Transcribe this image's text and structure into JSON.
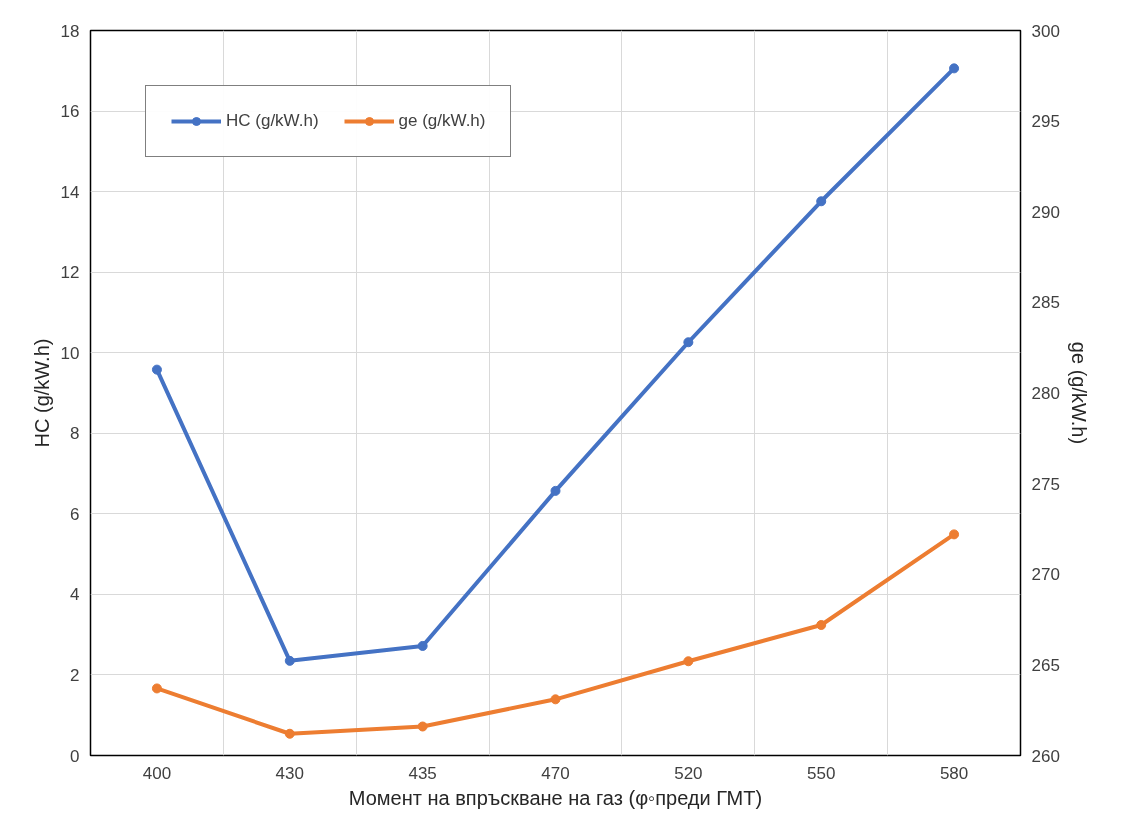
{
  "chart_data": {
    "type": "line",
    "xlabel": "Момент на впръскване на газ (φ◦преди ГМТ)",
    "ylabel": "HC (g/kW.h)",
    "y2label": "ge (g/kW.h)",
    "categories": [
      "400",
      "430",
      "435",
      "470",
      "520",
      "550",
      "580"
    ],
    "series": [
      {
        "name": "HC (g/kW.h)",
        "color": "#4472c4",
        "values": [
          9.58,
          2.35,
          2.72,
          6.57,
          10.26,
          13.76,
          17.06
        ]
      },
      {
        "name": "ge (g/kW.h)",
        "color": "#ed7d31",
        "axis": "y2",
        "values": [
          263.7,
          261.2,
          261.6,
          263.1,
          265.2,
          267.2,
          272.2
        ]
      }
    ],
    "ylim": [
      0,
      18
    ],
    "yticks": [
      0,
      2,
      4,
      6,
      8,
      10,
      12,
      14,
      16,
      18
    ],
    "y2lim": [
      260,
      300
    ],
    "y2ticks": [
      260,
      265,
      270,
      275,
      280,
      285,
      290,
      295,
      300
    ],
    "grid": true,
    "legend": "top left",
    "marker": "circle",
    "line_style": "solid"
  }
}
